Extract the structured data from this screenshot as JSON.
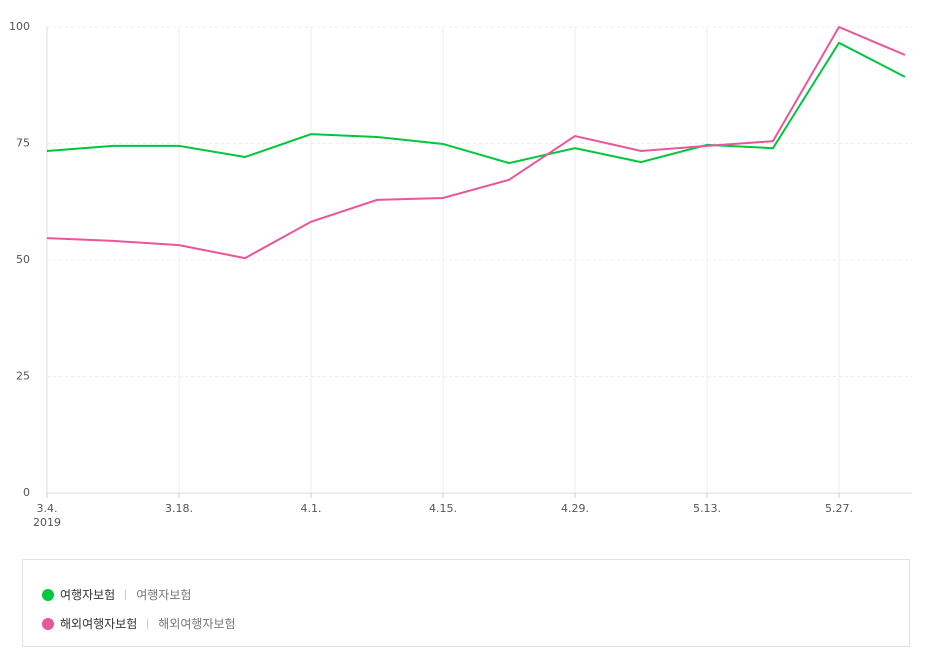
{
  "chart_data": {
    "type": "line",
    "categories": [
      "3.4.",
      null,
      "3.18.",
      null,
      "4.1.",
      null,
      "4.15.",
      null,
      "4.29.",
      null,
      "5.13.",
      null,
      "5.27.",
      null
    ],
    "x_sublabel": "2019",
    "series": [
      {
        "name": "여행자보험",
        "keyword": "여행자보험",
        "color": "#00c73c",
        "values": [
          73.4,
          74.5,
          74.5,
          72.1,
          77.0,
          76.4,
          74.9,
          70.8,
          74.0,
          71.0,
          74.7,
          74.0,
          96.6,
          89.3
        ]
      },
      {
        "name": "해외여행자보험",
        "keyword": "해외여행자보험",
        "color": "#e8579a",
        "values": [
          54.7,
          54.1,
          53.2,
          50.4,
          58.2,
          62.9,
          63.3,
          67.2,
          76.6,
          73.4,
          74.5,
          75.5,
          100,
          94.0
        ]
      }
    ],
    "ylim": [
      0,
      100
    ],
    "yticks": [
      0,
      25,
      50,
      75,
      100
    ],
    "grid": true
  }
}
